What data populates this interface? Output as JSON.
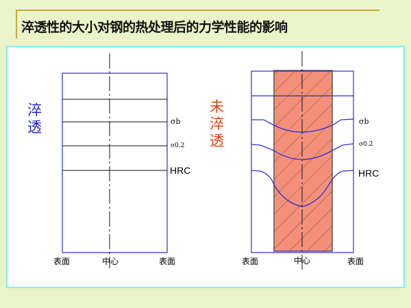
{
  "title": "淬透性的大小对钢的热处理后的力学性能的影响",
  "left_panel": {
    "label_lines": [
      "淬",
      "透"
    ],
    "label_color": "#2222cc",
    "curve_labels": [
      "σb",
      "σ0.2",
      "HRC"
    ],
    "axis_labels": [
      "表面",
      "中心",
      "表面"
    ]
  },
  "right_panel": {
    "label_lines": [
      "未",
      "淬",
      "透"
    ],
    "label_color": "#e04010",
    "core_fill": "#f4907a",
    "curve_labels": [
      "σb",
      "σ0.2",
      "HRC"
    ],
    "axis_labels": [
      "表面",
      "中心",
      "表面"
    ]
  }
}
